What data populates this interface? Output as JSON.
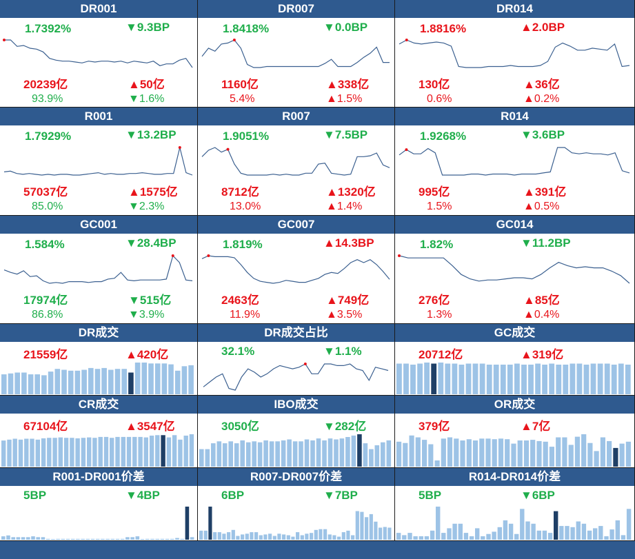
{
  "colors": {
    "header": "#2f5a8f",
    "up": "#e8141b",
    "down": "#1fae4b",
    "line": "#3a5f8f",
    "bar": "#9dc3e6",
    "bar_highlight": "#1f3f66",
    "marker": "#e8141b"
  },
  "panels": [
    {
      "title": "DR001",
      "kind": "line",
      "rate": "1.7392%",
      "rate_dir": "down",
      "rate_change": "9.3BP",
      "rate_change_dir": "down",
      "volume": "20239亿",
      "volume_dir": "up",
      "volume_change": "50亿",
      "volume_change_dir": "up",
      "share": "93.9%",
      "share_dir": "down",
      "share_change": "1.6%",
      "share_change_dir": "down",
      "chart_data": {
        "type": "line",
        "values": [
          1.92,
          1.92,
          1.85,
          1.86,
          1.83,
          1.82,
          1.79,
          1.72,
          1.7,
          1.69,
          1.69,
          1.68,
          1.67,
          1.69,
          1.68,
          1.69,
          1.69,
          1.68,
          1.69,
          1.67,
          1.69,
          1.68,
          1.67,
          1.69,
          1.64,
          1.66,
          1.66,
          1.7,
          1.72,
          1.62
        ],
        "marker_index": 0
      }
    },
    {
      "title": "DR007",
      "kind": "line",
      "rate": "1.8418%",
      "rate_dir": "neutral",
      "rate_change": "0.0BP",
      "rate_change_dir": "down",
      "volume": "1160亿",
      "volume_dir": "up",
      "volume_change": "338亿",
      "volume_change_dir": "up",
      "share": "5.4%",
      "share_dir": "up",
      "share_change": "1.5%",
      "share_change_dir": "up",
      "chart_data": {
        "type": "line",
        "values": [
          1.74,
          1.82,
          1.79,
          1.86,
          1.87,
          1.9,
          1.82,
          1.66,
          1.63,
          1.63,
          1.64,
          1.64,
          1.64,
          1.64,
          1.64,
          1.64,
          1.64,
          1.64,
          1.64,
          1.67,
          1.71,
          1.64,
          1.64,
          1.64,
          1.68,
          1.73,
          1.77,
          1.83,
          1.68,
          1.68
        ],
        "marker_index": 5
      }
    },
    {
      "title": "DR014",
      "kind": "line",
      "rate": "1.8816%",
      "rate_dir": "up",
      "rate_change": "2.0BP",
      "rate_change_dir": "up",
      "volume": "130亿",
      "volume_dir": "up",
      "volume_change": "36亿",
      "volume_change_dir": "up",
      "share": "0.6%",
      "share_dir": "up",
      "share_change": "0.2%",
      "share_change_dir": "up",
      "chart_data": {
        "type": "line",
        "values": [
          1.9,
          1.94,
          1.91,
          1.9,
          1.91,
          1.92,
          1.91,
          1.88,
          1.68,
          1.67,
          1.67,
          1.67,
          1.68,
          1.68,
          1.68,
          1.69,
          1.68,
          1.68,
          1.68,
          1.69,
          1.73,
          1.87,
          1.91,
          1.88,
          1.84,
          1.84,
          1.86,
          1.85,
          1.84,
          1.9,
          1.68,
          1.69
        ],
        "marker_index": 1
      }
    },
    {
      "title": "R001",
      "kind": "line",
      "rate": "1.7929%",
      "rate_dir": "down",
      "rate_change": "13.2BP",
      "rate_change_dir": "down",
      "volume": "57037亿",
      "volume_dir": "up",
      "volume_change": "1575亿",
      "volume_change_dir": "up",
      "share": "85.0%",
      "share_dir": "down",
      "share_change": "2.3%",
      "share_change_dir": "down",
      "chart_data": {
        "type": "line",
        "values": [
          1.76,
          1.77,
          1.74,
          1.73,
          1.74,
          1.73,
          1.72,
          1.73,
          1.72,
          1.73,
          1.73,
          1.72,
          1.72,
          1.73,
          1.74,
          1.75,
          1.73,
          1.74,
          1.73,
          1.73,
          1.74,
          1.74,
          1.75,
          1.74,
          1.73,
          1.73,
          1.74,
          1.74,
          2.07,
          1.75,
          1.72
        ],
        "marker_index": 28
      }
    },
    {
      "title": "R007",
      "kind": "line",
      "rate": "1.9051%",
      "rate_dir": "down",
      "rate_change": "7.5BP",
      "rate_change_dir": "down",
      "volume": "8712亿",
      "volume_dir": "up",
      "volume_change": "1320亿",
      "volume_change_dir": "up",
      "share": "13.0%",
      "share_dir": "up",
      "share_change": "1.4%",
      "share_change_dir": "up",
      "chart_data": {
        "type": "line",
        "values": [
          1.86,
          1.93,
          1.96,
          1.91,
          1.94,
          1.78,
          1.68,
          1.66,
          1.66,
          1.66,
          1.66,
          1.67,
          1.66,
          1.67,
          1.66,
          1.66,
          1.68,
          1.68,
          1.78,
          1.79,
          1.68,
          1.67,
          1.66,
          1.67,
          1.86,
          1.86,
          1.87,
          1.9,
          1.77,
          1.74
        ],
        "marker_index": 4
      }
    },
    {
      "title": "R014",
      "kind": "line",
      "rate": "1.9268%",
      "rate_dir": "down",
      "rate_change": "3.6BP",
      "rate_change_dir": "down",
      "volume": "995亿",
      "volume_dir": "up",
      "volume_change": "391亿",
      "volume_change_dir": "up",
      "share": "1.5%",
      "share_dir": "up",
      "share_change": "0.5%",
      "share_change_dir": "up",
      "chart_data": {
        "type": "line",
        "values": [
          1.92,
          1.97,
          1.93,
          1.93,
          1.98,
          1.94,
          1.73,
          1.73,
          1.73,
          1.73,
          1.74,
          1.74,
          1.73,
          1.74,
          1.74,
          1.74,
          1.73,
          1.74,
          1.74,
          1.74,
          1.75,
          1.76,
          1.99,
          1.99,
          1.94,
          1.93,
          1.94,
          1.93,
          1.93,
          1.92,
          1.94,
          1.77,
          1.75
        ],
        "marker_index": 1
      }
    },
    {
      "title": "GC001",
      "kind": "line",
      "rate": "1.584%",
      "rate_dir": "down",
      "rate_change": "28.4BP",
      "rate_change_dir": "down",
      "volume": "17974亿",
      "volume_dir": "down",
      "volume_change": "515亿",
      "volume_change_dir": "down",
      "share": "86.8%",
      "share_dir": "down",
      "share_change": "3.9%",
      "share_change_dir": "down",
      "chart_data": {
        "type": "line",
        "values": [
          1.67,
          1.64,
          1.62,
          1.66,
          1.59,
          1.6,
          1.54,
          1.51,
          1.52,
          1.51,
          1.53,
          1.53,
          1.53,
          1.52,
          1.53,
          1.53,
          1.56,
          1.57,
          1.64,
          1.55,
          1.54,
          1.55,
          1.55,
          1.55,
          1.55,
          1.56,
          1.84,
          1.76,
          1.55,
          1.54
        ],
        "marker_index": 26
      }
    },
    {
      "title": "GC007",
      "kind": "line",
      "rate": "1.819%",
      "rate_dir": "down",
      "rate_change": "14.3BP",
      "rate_change_dir": "up",
      "volume": "2463亿",
      "volume_dir": "up",
      "volume_change": "749亿",
      "volume_change_dir": "up",
      "share": "11.9%",
      "share_dir": "up",
      "share_change": "3.5%",
      "share_change_dir": "up",
      "chart_data": {
        "type": "line",
        "values": [
          1.86,
          1.89,
          1.88,
          1.88,
          1.88,
          1.87,
          1.8,
          1.72,
          1.66,
          1.63,
          1.62,
          1.61,
          1.62,
          1.64,
          1.63,
          1.62,
          1.62,
          1.64,
          1.66,
          1.7,
          1.72,
          1.71,
          1.76,
          1.82,
          1.85,
          1.82,
          1.85,
          1.8,
          1.73,
          1.65
        ],
        "marker_index": 1
      }
    },
    {
      "title": "GC014",
      "kind": "line",
      "rate": "1.82%",
      "rate_dir": "down",
      "rate_change": "11.2BP",
      "rate_change_dir": "down",
      "volume": "276亿",
      "volume_dir": "up",
      "volume_change": "85亿",
      "volume_change_dir": "up",
      "share": "1.3%",
      "share_dir": "up",
      "share_change": "0.4%",
      "share_change_dir": "up",
      "chart_data": {
        "type": "line",
        "values": [
          1.92,
          1.9,
          1.9,
          1.9,
          1.9,
          1.9,
          1.83,
          1.75,
          1.71,
          1.69,
          1.7,
          1.7,
          1.71,
          1.72,
          1.72,
          1.71,
          1.75,
          1.81,
          1.86,
          1.83,
          1.81,
          1.82,
          1.81,
          1.81,
          1.78,
          1.74,
          1.67
        ],
        "marker_index": 0
      }
    },
    {
      "title": "DR成交",
      "kind": "bar",
      "v1": "21559亿",
      "v1_dir": "up",
      "v2": "420亿",
      "v2_dir": "up",
      "chart_data": {
        "type": "bar",
        "values": [
          22,
          23,
          24,
          24,
          22,
          22,
          21,
          25,
          28,
          27,
          26,
          26,
          27,
          29,
          28,
          29,
          27,
          28,
          28,
          24,
          35,
          35,
          34,
          34,
          34,
          33,
          26,
          31,
          32
        ],
        "highlight_index": 19
      }
    },
    {
      "title": "DR成交占比",
      "kind": "line",
      "v1": "32.1%",
      "v1_dir": "down",
      "v2": "1.1%",
      "v2_dir": "down",
      "chart_data": {
        "type": "line",
        "values": [
          22,
          25,
          28,
          30,
          21,
          20,
          28,
          33,
          31,
          28,
          30,
          33,
          35,
          34,
          33,
          34,
          36,
          30,
          30,
          36,
          36,
          35,
          35,
          36,
          33,
          32,
          26,
          34,
          33,
          32
        ],
        "marker_index": 16
      }
    },
    {
      "title": "GC成交",
      "kind": "bar",
      "v1": "20712亿",
      "v1_dir": "up",
      "v2": "319亿",
      "v2_dir": "up",
      "chart_data": {
        "type": "bar",
        "values": [
          30,
          30,
          29,
          30,
          31,
          30,
          31,
          30,
          30,
          29,
          30,
          30,
          30,
          29,
          29,
          29,
          29,
          30,
          29,
          29,
          30,
          29,
          30,
          29,
          29,
          30,
          30,
          29,
          30,
          30,
          30,
          29,
          30,
          29
        ],
        "highlight_index": 5
      }
    },
    {
      "title": "CR成交",
      "kind": "bar",
      "v1": "67104亿",
      "v1_dir": "up",
      "v2": "3547亿",
      "v2_dir": "up",
      "chart_data": {
        "type": "bar",
        "values": [
          58,
          60,
          62,
          60,
          62,
          62,
          60,
          63,
          64,
          64,
          65,
          64,
          64,
          63,
          64,
          65,
          64,
          66,
          66,
          64,
          66,
          66,
          66,
          66,
          66,
          65,
          69,
          70,
          70,
          65,
          70,
          60,
          69,
          72
        ],
        "highlight_index": 28
      }
    },
    {
      "title": "IBO成交",
      "kind": "bar",
      "v1": "3050亿",
      "v1_dir": "down",
      "v2": "282亿",
      "v2_dir": "down",
      "chart_data": {
        "type": "bar",
        "values": [
          1800,
          1800,
          2400,
          2600,
          2400,
          2600,
          2400,
          2700,
          2500,
          2600,
          2500,
          2700,
          2600,
          2600,
          2700,
          2800,
          2600,
          2600,
          2800,
          2700,
          2900,
          2700,
          2900,
          2800,
          2900,
          3050,
          3200,
          3332,
          2400,
          1800,
          2200,
          2500,
          2700
        ],
        "highlight_index": 27
      }
    },
    {
      "title": "OR成交",
      "kind": "bar",
      "v1": "379亿",
      "v1_dir": "up",
      "v2": "7亿",
      "v2_dir": "up",
      "chart_data": {
        "type": "bar",
        "values": [
          400,
          380,
          500,
          470,
          430,
          360,
          100,
          450,
          470,
          450,
          420,
          440,
          420,
          450,
          450,
          440,
          450,
          440,
          370,
          420,
          420,
          430,
          410,
          400,
          320,
          470,
          470,
          350,
          480,
          520,
          380,
          250,
          470,
          410,
          300,
          370,
          400
        ],
        "highlight_index": 34
      }
    },
    {
      "title": "R001-DR001价差",
      "kind": "bar",
      "v1": "5BP",
      "v1_dir": "neutral",
      "v2": "4BP",
      "v2_dir": "down",
      "chart_data": {
        "type": "bar",
        "values": [
          4,
          5,
          3,
          3,
          3,
          3,
          4,
          3,
          3,
          1,
          0,
          1,
          1,
          1,
          1,
          1,
          1,
          1,
          1,
          1,
          1,
          1,
          1,
          1,
          1,
          3,
          3,
          4,
          0,
          1,
          1,
          1,
          1,
          1,
          1,
          2,
          1,
          39,
          3
        ],
        "highlight_index": 37
      }
    },
    {
      "title": "R007-DR007价差",
      "kind": "bar",
      "v1": "6BP",
      "v1_dir": "neutral",
      "v2": "7BP",
      "v2_dir": "down",
      "chart_data": {
        "type": "bar",
        "values": [
          12,
          12,
          44,
          10,
          10,
          8,
          10,
          13,
          5,
          7,
          8,
          10,
          10,
          6,
          7,
          8,
          5,
          8,
          7,
          6,
          4,
          10,
          6,
          8,
          9,
          13,
          14,
          14,
          7,
          6,
          4,
          10,
          12,
          6,
          38,
          37,
          30,
          34,
          24,
          16,
          17,
          16
        ],
        "highlight_index": 2
      }
    },
    {
      "title": "R014-DR014价差",
      "kind": "bar",
      "v1": "5BP",
      "v1_dir": "neutral",
      "v2": "6BP",
      "v2_dir": "down",
      "chart_data": {
        "type": "bar",
        "values": [
          6,
          4,
          6,
          3,
          3,
          3,
          8,
          29,
          6,
          10,
          14,
          14,
          6,
          3,
          10,
          3,
          5,
          7,
          11,
          17,
          14,
          5,
          27,
          16,
          14,
          8,
          8,
          6,
          25,
          12,
          12,
          11,
          16,
          14,
          8,
          10,
          12,
          3,
          9,
          17,
          4,
          27
        ],
        "highlight_index": 28
      }
    }
  ]
}
